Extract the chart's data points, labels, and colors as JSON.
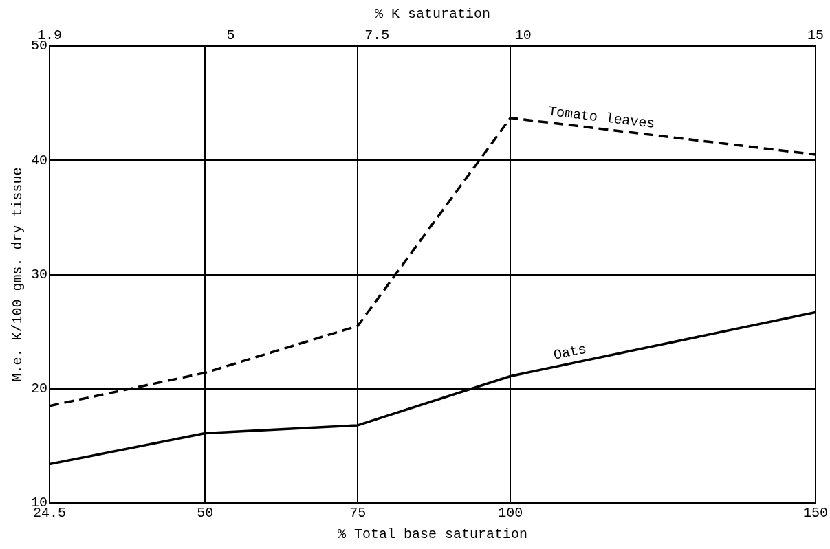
{
  "chart_data": {
    "type": "line",
    "xlabel": "% Total base saturation",
    "x2label": "% K saturation",
    "ylabel": "M.e. K/100 gms. dry tissue",
    "x": [
      24.5,
      50,
      75,
      100,
      150
    ],
    "xlim": [
      24.5,
      150
    ],
    "xticks": [
      24.5,
      50,
      75,
      100,
      150
    ],
    "x2lim": [
      1.9,
      15
    ],
    "x2ticks": [
      1.9,
      5,
      7.5,
      10,
      15
    ],
    "ylim": [
      10,
      50
    ],
    "yticks": [
      10,
      20,
      30,
      40,
      50
    ],
    "series": [
      {
        "name": "Tomato leaves",
        "color": "#000000",
        "line_style": "dashed",
        "values": [
          18.5,
          21.4,
          25.5,
          43.7,
          40.5
        ]
      },
      {
        "name": "Oats",
        "color": "#000000",
        "line_style": "solid",
        "values": [
          13.4,
          16.1,
          16.8,
          21.1,
          26.7
        ]
      }
    ],
    "grid": true,
    "legend": false,
    "marker": "none"
  }
}
